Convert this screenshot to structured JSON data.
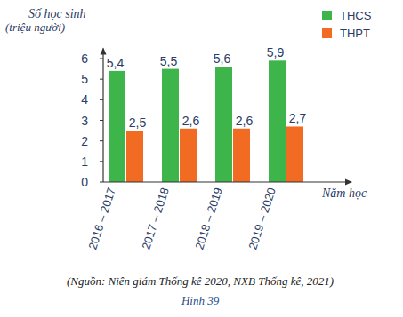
{
  "chart_data": {
    "type": "bar",
    "y_label": "Số học sinh\n(triệu người)",
    "x_label": "Năm học",
    "source": "(Nguồn: Niên giám Thống kê 2020, NXB Thống kê, 2021)",
    "caption": "Hình 39",
    "categories": [
      "2016 – 2017",
      "2017 – 2018",
      "2018 – 2019",
      "2019 – 2020"
    ],
    "series": [
      {
        "name": "THCS",
        "color": "#3db54a",
        "values": [
          5.4,
          5.5,
          5.6,
          5.9
        ],
        "value_labels": [
          "5,4",
          "5,5",
          "5,6",
          "5,9"
        ]
      },
      {
        "name": "THPT",
        "color": "#f26b22",
        "values": [
          2.5,
          2.6,
          2.6,
          2.7
        ],
        "value_labels": [
          "2,5",
          "2,6",
          "2,6",
          "2,7"
        ]
      }
    ],
    "ylim": [
      0,
      6.5
    ],
    "yticks": [
      0,
      1,
      2,
      3,
      4,
      5,
      6
    ],
    "grid": false,
    "legend": "top-right",
    "data_labels": true
  }
}
